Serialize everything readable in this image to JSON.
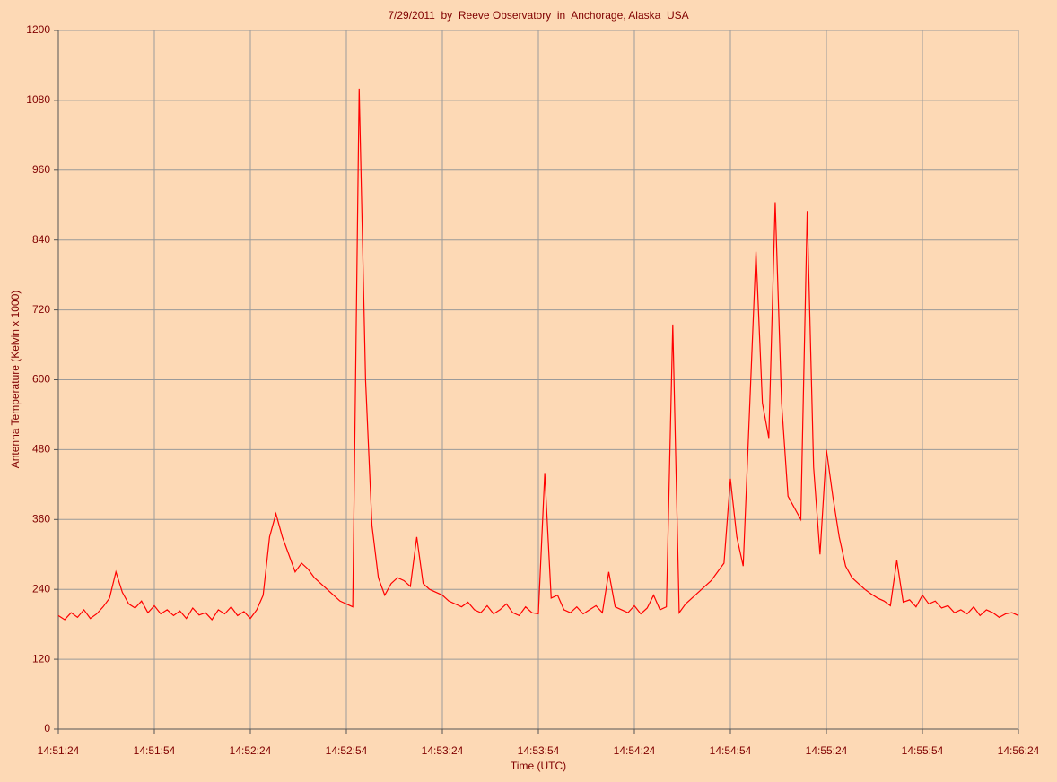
{
  "chart_data": {
    "type": "line",
    "title": "7/29/2011  by  Reeve Observatory  in  Anchorage, Alaska  USA",
    "x_label": "Time (UTC)",
    "y_label": "Antenna Temperature (Kelvin x 1000)",
    "x": [
      "14:51:24",
      "14:51:26",
      "14:51:28",
      "14:51:30",
      "14:51:32",
      "14:51:34",
      "14:51:36",
      "14:51:38",
      "14:51:40",
      "14:51:42",
      "14:51:44",
      "14:51:46",
      "14:51:48",
      "14:51:50",
      "14:51:52",
      "14:51:54",
      "14:51:56",
      "14:51:58",
      "14:52:00",
      "14:52:02",
      "14:52:04",
      "14:52:06",
      "14:52:08",
      "14:52:10",
      "14:52:12",
      "14:52:14",
      "14:52:16",
      "14:52:18",
      "14:52:20",
      "14:52:22",
      "14:52:24",
      "14:52:26",
      "14:52:28",
      "14:52:30",
      "14:52:32",
      "14:52:34",
      "14:52:36",
      "14:52:38",
      "14:52:40",
      "14:52:42",
      "14:52:44",
      "14:52:46",
      "14:52:48",
      "14:52:50",
      "14:52:52",
      "14:52:54",
      "14:52:56",
      "14:52:58",
      "14:53:00",
      "14:53:02",
      "14:53:04",
      "14:53:06",
      "14:53:08",
      "14:53:10",
      "14:53:12",
      "14:53:14",
      "14:53:16",
      "14:53:18",
      "14:53:20",
      "14:53:22",
      "14:53:24",
      "14:53:26",
      "14:53:28",
      "14:53:30",
      "14:53:32",
      "14:53:34",
      "14:53:36",
      "14:53:38",
      "14:53:40",
      "14:53:42",
      "14:53:44",
      "14:53:46",
      "14:53:48",
      "14:53:50",
      "14:53:52",
      "14:53:54",
      "14:53:56",
      "14:53:58",
      "14:54:00",
      "14:54:02",
      "14:54:04",
      "14:54:06",
      "14:54:08",
      "14:54:10",
      "14:54:12",
      "14:54:14",
      "14:54:16",
      "14:54:18",
      "14:54:20",
      "14:54:22",
      "14:54:24",
      "14:54:26",
      "14:54:28",
      "14:54:30",
      "14:54:32",
      "14:54:34",
      "14:54:36",
      "14:54:38",
      "14:54:40",
      "14:54:42",
      "14:54:44",
      "14:54:46",
      "14:54:48",
      "14:54:50",
      "14:54:52",
      "14:54:54",
      "14:54:56",
      "14:54:58",
      "14:55:00",
      "14:55:02",
      "14:55:04",
      "14:55:06",
      "14:55:08",
      "14:55:10",
      "14:55:12",
      "14:55:14",
      "14:55:16",
      "14:55:18",
      "14:55:20",
      "14:55:22",
      "14:55:24",
      "14:55:26",
      "14:55:28",
      "14:55:30",
      "14:55:32",
      "14:55:34",
      "14:55:36",
      "14:55:38",
      "14:55:40",
      "14:55:42",
      "14:55:44",
      "14:55:46",
      "14:55:48",
      "14:55:50",
      "14:55:52",
      "14:55:54",
      "14:55:56",
      "14:55:58",
      "14:56:00",
      "14:56:02",
      "14:56:04",
      "14:56:06",
      "14:56:08",
      "14:56:10",
      "14:56:12",
      "14:56:14",
      "14:56:16",
      "14:56:18",
      "14:56:20",
      "14:56:22",
      "14:56:24"
    ],
    "series": [
      {
        "color": "#ff0000",
        "values": [
          195,
          188,
          200,
          192,
          205,
          190,
          198,
          210,
          225,
          270,
          235,
          215,
          208,
          220,
          200,
          212,
          198,
          205,
          195,
          203,
          190,
          208,
          196,
          200,
          188,
          205,
          198,
          210,
          195,
          202,
          190,
          205,
          230,
          330,
          370,
          330,
          300,
          270,
          285,
          275,
          260,
          250,
          240,
          230,
          220,
          215,
          210,
          1100,
          600,
          350,
          260,
          230,
          250,
          260,
          255,
          245,
          330,
          250,
          240,
          235,
          230,
          220,
          215,
          210,
          218,
          205,
          200,
          212,
          198,
          205,
          215,
          200,
          195,
          210,
          200,
          198,
          440,
          225,
          230,
          205,
          200,
          210,
          198,
          205,
          212,
          200,
          270,
          210,
          205,
          200,
          212,
          198,
          208,
          230,
          205,
          210,
          695,
          200,
          215,
          225,
          235,
          245,
          255,
          270,
          285,
          430,
          330,
          280,
          550,
          820,
          560,
          500,
          905,
          560,
          400,
          380,
          360,
          890,
          450,
          300,
          480,
          400,
          330,
          280,
          260,
          250,
          240,
          232,
          225,
          220,
          212,
          290,
          218,
          222,
          210,
          230,
          215,
          220,
          208,
          212,
          200,
          205,
          198,
          210,
          195,
          205,
          200,
          192,
          198,
          200,
          195
        ]
      }
    ],
    "xlim": [
      "14:51:24",
      "14:56:24"
    ],
    "xticks": [
      "14:51:24",
      "14:51:54",
      "14:52:24",
      "14:52:54",
      "14:53:24",
      "14:53:54",
      "14:54:24",
      "14:54:54",
      "14:55:24",
      "14:55:54",
      "14:56:24"
    ],
    "ylim": [
      0,
      1200
    ],
    "yticks": [
      0,
      120,
      240,
      360,
      480,
      600,
      720,
      840,
      960,
      1080,
      1200
    ],
    "grid": true
  }
}
